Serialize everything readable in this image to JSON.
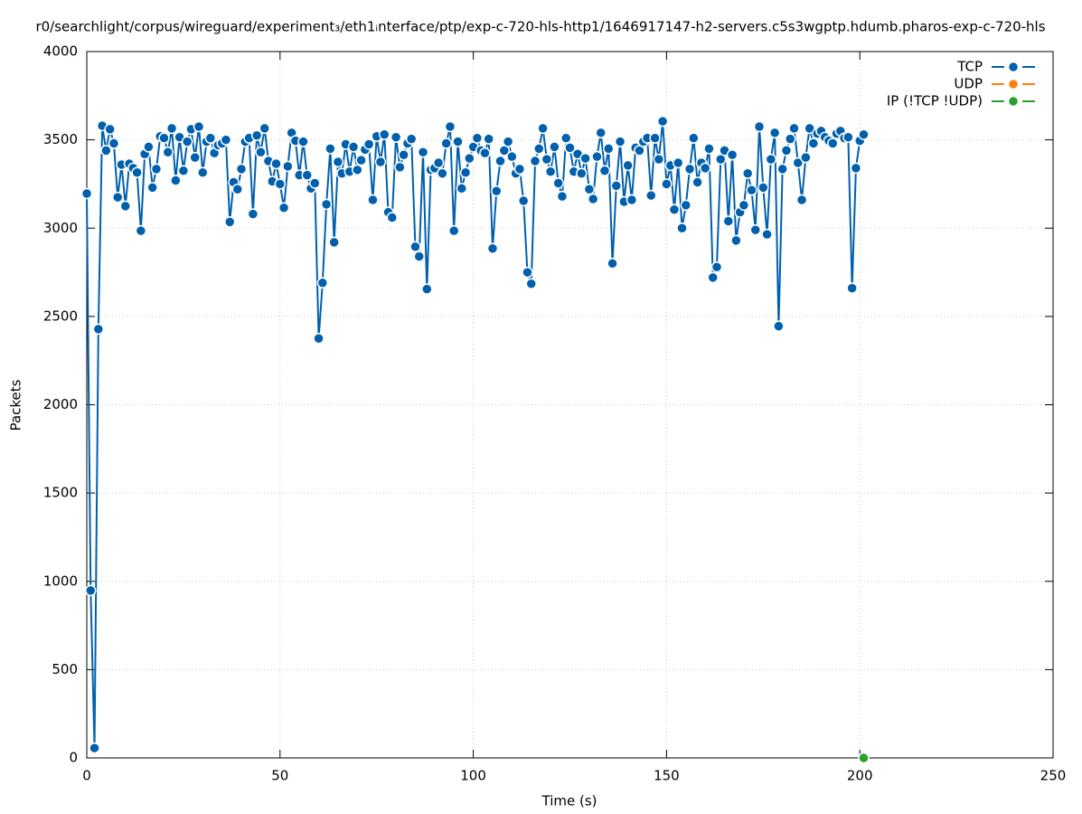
{
  "chart_data": {
    "type": "line",
    "title": "r0/searchlight/corpus/wireguard/experiment₃/eth1ᵢnterface/ptp/exp-c-720-hls-http1/1646917147-h2-servers.c5s3wgptp.hdumb.pharos-exp-c-720-hls",
    "xlabel": "Time (s)",
    "ylabel": "Packets",
    "xlim": [
      0,
      250
    ],
    "xticks": [
      0,
      50,
      100,
      150,
      200,
      250
    ],
    "ylim": [
      0,
      4000
    ],
    "yticks": [
      0,
      500,
      1000,
      1500,
      2000,
      2500,
      3000,
      3500,
      4000
    ],
    "grid": true,
    "legend": "top-right",
    "series": [
      {
        "name": "TCP",
        "color": "#0060ad",
        "x": [
          0,
          1,
          2,
          3,
          4,
          5,
          6,
          7,
          8,
          9,
          10,
          11,
          12,
          13,
          14,
          15,
          16,
          17,
          18,
          19,
          20,
          21,
          22,
          23,
          24,
          25,
          26,
          27,
          28,
          29,
          30,
          31,
          32,
          33,
          34,
          35,
          36,
          37,
          38,
          39,
          40,
          41,
          42,
          43,
          44,
          45,
          46,
          47,
          48,
          49,
          50,
          51,
          52,
          53,
          54,
          55,
          56,
          57,
          58,
          59,
          60,
          61,
          62,
          63,
          64,
          65,
          66,
          67,
          68,
          69,
          70,
          71,
          72,
          73,
          74,
          75,
          76,
          77,
          78,
          79,
          80,
          81,
          82,
          83,
          84,
          85,
          86,
          87,
          88,
          89,
          90,
          91,
          92,
          93,
          94,
          95,
          96,
          97,
          98,
          99,
          100,
          101,
          102,
          103,
          104,
          105,
          106,
          107,
          108,
          109,
          110,
          111,
          112,
          113,
          114,
          115,
          116,
          117,
          118,
          119,
          120,
          121,
          122,
          123,
          124,
          125,
          126,
          127,
          128,
          129,
          130,
          131,
          132,
          133,
          134,
          135,
          136,
          137,
          138,
          139,
          140,
          141,
          142,
          143,
          144,
          145,
          146,
          147,
          148,
          149,
          150,
          151,
          152,
          153,
          154,
          155,
          156,
          157,
          158,
          159,
          160,
          161,
          162,
          163,
          164,
          165,
          166,
          167,
          168,
          169,
          170,
          171,
          172,
          173,
          174,
          175,
          176,
          177,
          178,
          179,
          180,
          181,
          182,
          183,
          184,
          185,
          186,
          187,
          188,
          189,
          190,
          191,
          192,
          193,
          194,
          195,
          196,
          197,
          198,
          199,
          200,
          201
        ],
        "values": [
          3196,
          948,
          56,
          2428,
          3580,
          3440,
          3560,
          3480,
          3175,
          3360,
          3125,
          3365,
          3340,
          3315,
          2985,
          3420,
          3460,
          3230,
          3335,
          3520,
          3510,
          3430,
          3565,
          3270,
          3515,
          3325,
          3490,
          3560,
          3400,
          3575,
          3315,
          3490,
          3510,
          3425,
          3470,
          3480,
          3500,
          3035,
          3260,
          3220,
          3335,
          3490,
          3510,
          3080,
          3525,
          3430,
          3565,
          3380,
          3265,
          3365,
          3250,
          3115,
          3350,
          3540,
          3495,
          3300,
          3490,
          3300,
          3225,
          3255,
          2375,
          2690,
          3135,
          3450,
          2920,
          3375,
          3310,
          3475,
          3320,
          3460,
          3330,
          3385,
          3445,
          3475,
          3160,
          3520,
          3375,
          3530,
          3090,
          3060,
          3515,
          3345,
          3415,
          3480,
          3505,
          2895,
          2840,
          3430,
          2655,
          3330,
          3340,
          3370,
          3310,
          3480,
          3575,
          2985,
          3490,
          3225,
          3315,
          3395,
          3460,
          3510,
          3440,
          3425,
          3505,
          2885,
          3210,
          3380,
          3440,
          3490,
          3405,
          3310,
          3335,
          3155,
          2750,
          2685,
          3380,
          3450,
          3565,
          3390,
          3320,
          3460,
          3255,
          3180,
          3510,
          3455,
          3320,
          3420,
          3310,
          3395,
          3220,
          3165,
          3405,
          3540,
          3325,
          3450,
          2800,
          3240,
          3490,
          3150,
          3355,
          3160,
          3455,
          3440,
          3490,
          3510,
          3185,
          3510,
          3390,
          3605,
          3250,
          3355,
          3105,
          3370,
          3000,
          3130,
          3335,
          3510,
          3260,
          3370,
          3340,
          3450,
          2720,
          2780,
          3390,
          3440,
          3040,
          3415,
          2930,
          3090,
          3130,
          3310,
          3215,
          2990,
          3575,
          3230,
          2965,
          3390,
          3540,
          2445,
          3335,
          3440,
          3505,
          3565,
          3370,
          3160,
          3400,
          3565,
          3480,
          3535,
          3550,
          3515,
          3495,
          3480,
          3535,
          3550,
          3510,
          3515,
          2660,
          3340,
          3495,
          3530
        ]
      },
      {
        "name": "UDP",
        "color": "#ff7f0e",
        "x": [],
        "values": []
      },
      {
        "name": "IP (!TCP  !UDP)",
        "color": "#2ca02c",
        "x": [
          201
        ],
        "values": [
          0
        ]
      }
    ]
  }
}
